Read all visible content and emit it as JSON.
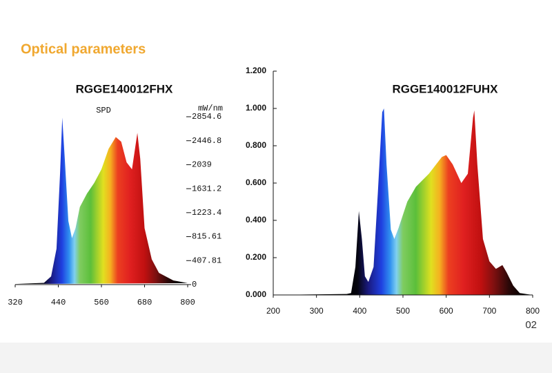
{
  "header": {
    "title": "Optical parameters"
  },
  "page_number": "02",
  "chart_data": [
    {
      "type": "area",
      "title": "RGGE140012FHX",
      "subtitle": "SPD",
      "y_label": "mW/nm",
      "x": [
        320,
        400,
        420,
        435,
        445,
        451,
        458,
        468,
        478,
        488,
        500,
        520,
        540,
        560,
        580,
        600,
        615,
        630,
        645,
        660,
        668,
        680,
        700,
        720,
        760,
        800
      ],
      "values": [
        10,
        30,
        140,
        610,
        1900,
        2840,
        2140,
        1080,
        790,
        960,
        1320,
        1550,
        1730,
        1960,
        2310,
        2510,
        2430,
        2080,
        1960,
        2580,
        2140,
        960,
        430,
        200,
        70,
        25
      ],
      "xlim": [
        320,
        800
      ],
      "xticks": [
        320,
        440,
        560,
        680,
        800
      ],
      "ylim": [
        0,
        2854.6
      ],
      "yticks": [
        0,
        407.81,
        815.61,
        1223.4,
        1631.2,
        2039,
        2446.8,
        2854.6
      ],
      "y_axis_side": "right"
    },
    {
      "type": "area",
      "title": "RGGE140012FUHX",
      "x": [
        200,
        370,
        380,
        390,
        398,
        405,
        412,
        420,
        432,
        442,
        452,
        456,
        462,
        472,
        480,
        490,
        510,
        530,
        560,
        590,
        600,
        615,
        635,
        650,
        662,
        665,
        672,
        685,
        700,
        715,
        730,
        740,
        755,
        770,
        800
      ],
      "values": [
        0,
        0.005,
        0.01,
        0.15,
        0.45,
        0.3,
        0.1,
        0.07,
        0.15,
        0.55,
        0.98,
        1.0,
        0.7,
        0.35,
        0.3,
        0.36,
        0.5,
        0.58,
        0.65,
        0.74,
        0.75,
        0.7,
        0.6,
        0.65,
        0.95,
        0.99,
        0.7,
        0.3,
        0.18,
        0.14,
        0.16,
        0.12,
        0.05,
        0.01,
        0
      ],
      "xlim": [
        200,
        800
      ],
      "xticks": [
        200,
        300,
        400,
        500,
        600,
        700,
        800
      ],
      "ylim": [
        0,
        1.2
      ],
      "yticks": [
        {
          "value": 0,
          "label": "0.000"
        },
        {
          "value": 0.2,
          "label": "0.200"
        },
        {
          "value": 0.4,
          "label": "0.400"
        },
        {
          "value": 0.6,
          "label": "0.600"
        },
        {
          "value": 0.8,
          "label": "0.800"
        },
        {
          "value": 1.0,
          "label": "1.000"
        },
        {
          "value": 1.2,
          "label": "1.200"
        }
      ],
      "y_axis_side": "left"
    }
  ]
}
